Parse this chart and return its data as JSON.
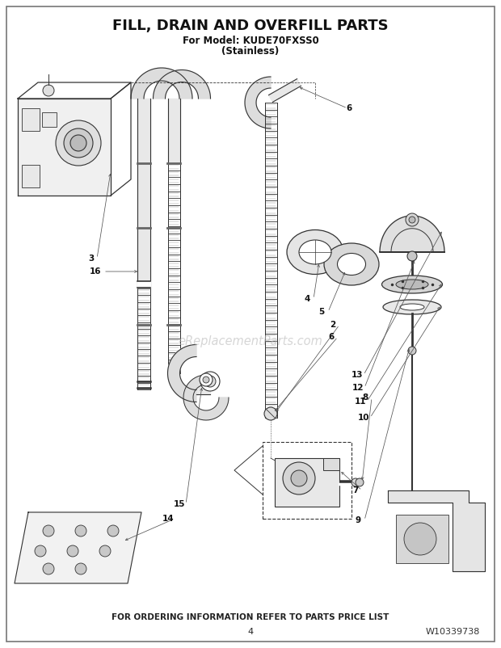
{
  "title": "FILL, DRAIN AND OVERFILL PARTS",
  "subtitle1": "For Model: KUDE70FXSS0",
  "subtitle2": "(Stainless)",
  "footer": "FOR ORDERING INFORMATION REFER TO PARTS PRICE LIST",
  "page_num": "4",
  "doc_num": "W10339738",
  "bg_color": "#ffffff",
  "lc": "#333333",
  "watermark": "eReplacementParts.com",
  "watermark_color": "#bbbbbb",
  "border_color": "#777777"
}
